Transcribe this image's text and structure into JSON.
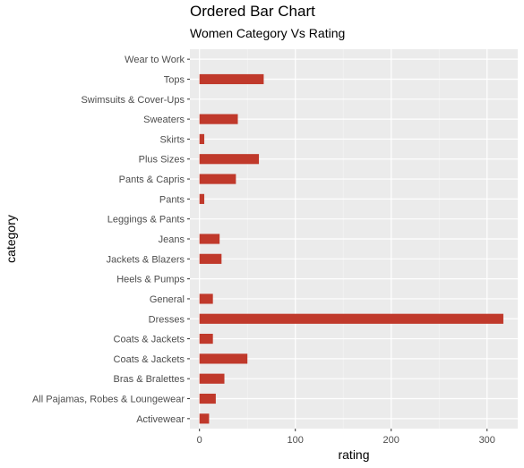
{
  "chart_data": {
    "type": "bar",
    "orientation": "horizontal",
    "title": "Ordered Bar Chart",
    "subtitle": "Women Category Vs Rating",
    "xlabel": "rating",
    "ylabel": "category",
    "xlim": [
      -10,
      332
    ],
    "xticks": [
      0,
      100,
      200,
      300
    ],
    "grid": true,
    "legend": "none",
    "bar_color": "#c0392b",
    "panel_color": "#ebebeb",
    "categories": [
      "Wear to Work",
      "Tops",
      "Swimsuits & Cover-Ups",
      "Sweaters",
      "Skirts",
      "Plus Sizes",
      "Pants & Capris",
      "Pants",
      "Leggings & Pants",
      "Jeans",
      "Jackets & Blazers",
      "Heels & Pumps",
      "General",
      "Dresses",
      "Coats & Jackets ",
      "Coats & Jackets",
      "Bras & Bralettes",
      "All Pajamas, Robes & Loungewear",
      "Activewear"
    ],
    "values": [
      0,
      67,
      0,
      40,
      5,
      62,
      38,
      5,
      0,
      21,
      23,
      0,
      14,
      317,
      14,
      50,
      26,
      17,
      10
    ]
  }
}
